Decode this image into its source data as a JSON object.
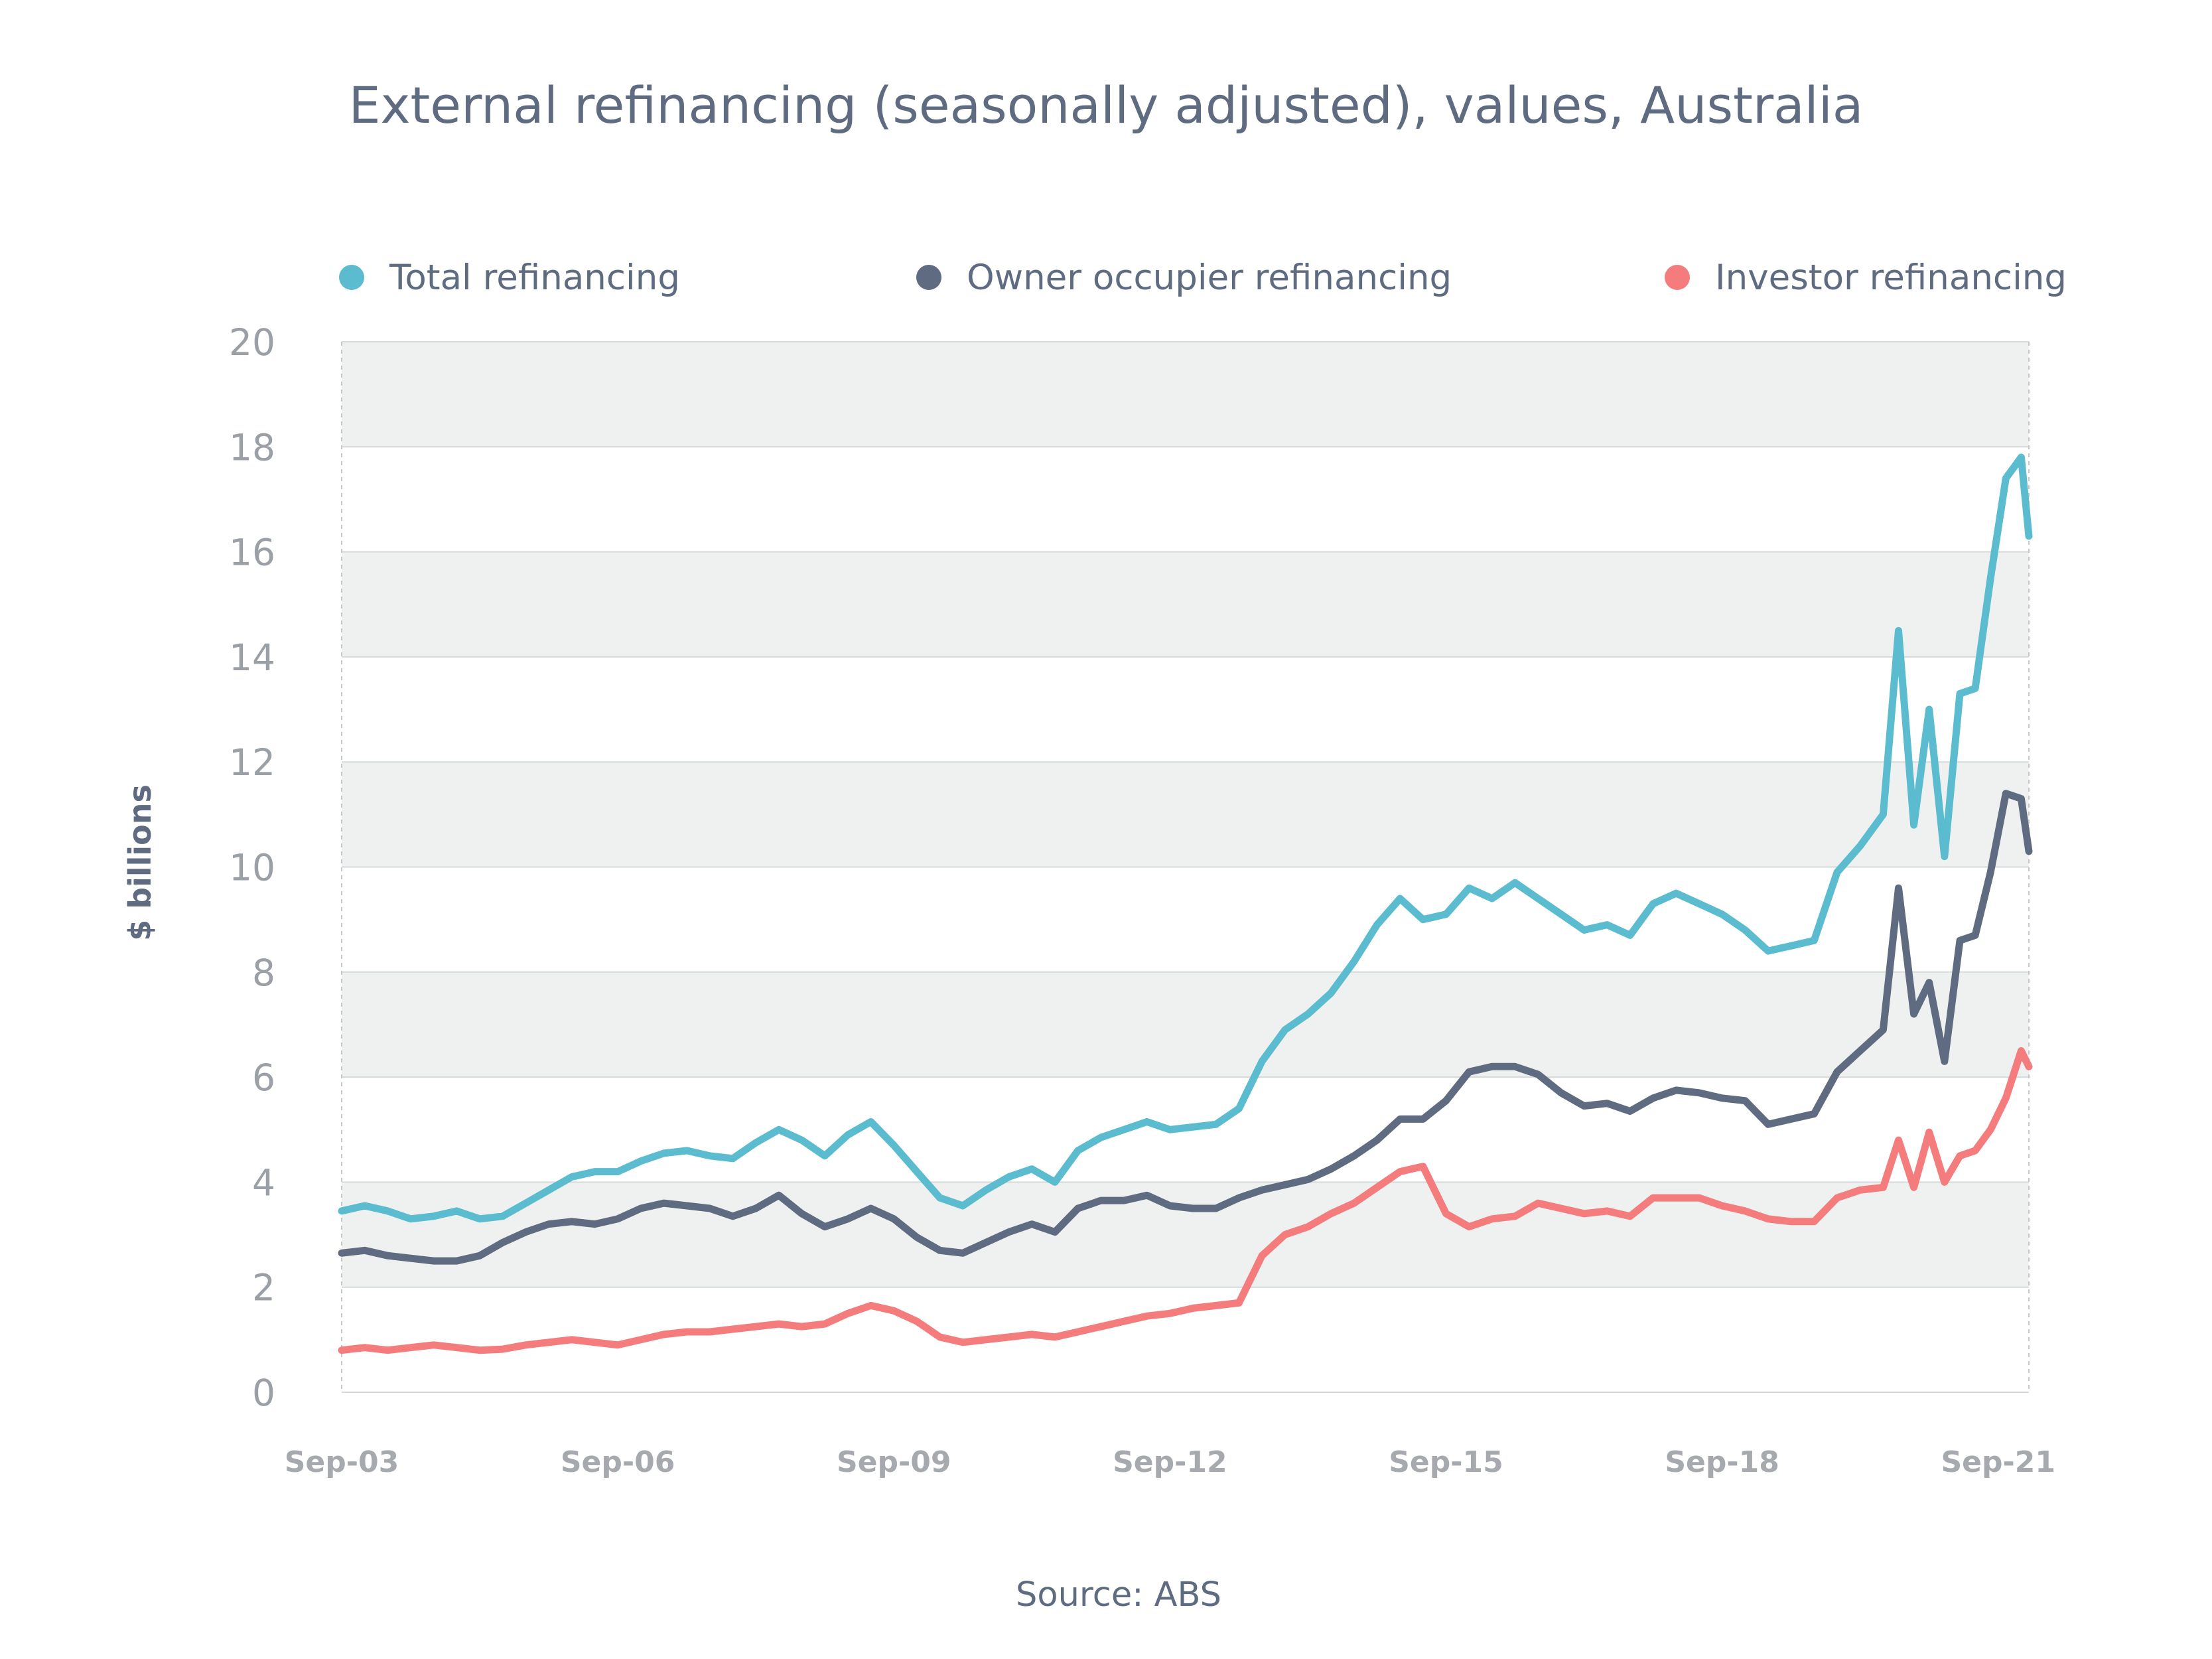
{
  "chart_data": {
    "type": "line",
    "title": "External refinancing (seasonally adjusted), values, Australia",
    "ylabel": "$ billions",
    "xlabel": "",
    "source": "Source: ABS",
    "ylim": [
      0,
      20
    ],
    "yticks": [
      "0",
      "2",
      "4",
      "6",
      "8",
      "10",
      "12",
      "14",
      "16",
      "18",
      "20"
    ],
    "x_range": [
      "Sep-03",
      "Jan-22"
    ],
    "x_ticks": [
      {
        "date": "2003-09",
        "label": "Sep-03"
      },
      {
        "date": "2006-09",
        "label": "Sep-06"
      },
      {
        "date": "2009-09",
        "label": "Sep-09"
      },
      {
        "date": "2012-09",
        "label": "Sep-12"
      },
      {
        "date": "2015-09",
        "label": "Sep-15"
      },
      {
        "date": "2018-09",
        "label": "Sep-18"
      },
      {
        "date": "2021-09",
        "label": "Sep-21"
      }
    ],
    "grid": true,
    "alternating_bands": true,
    "legend_position": "top",
    "series": [
      {
        "name": "Total refinancing",
        "color": "#5bbccf",
        "points": [
          [
            "2003-09",
            3.45
          ],
          [
            "2003-12",
            3.55
          ],
          [
            "2004-03",
            3.45
          ],
          [
            "2004-06",
            3.3
          ],
          [
            "2004-09",
            3.35
          ],
          [
            "2004-12",
            3.45
          ],
          [
            "2005-03",
            3.3
          ],
          [
            "2005-06",
            3.35
          ],
          [
            "2005-09",
            3.6
          ],
          [
            "2005-12",
            3.85
          ],
          [
            "2006-03",
            4.1
          ],
          [
            "2006-06",
            4.2
          ],
          [
            "2006-09",
            4.2
          ],
          [
            "2006-12",
            4.4
          ],
          [
            "2007-03",
            4.55
          ],
          [
            "2007-06",
            4.6
          ],
          [
            "2007-09",
            4.5
          ],
          [
            "2007-12",
            4.45
          ],
          [
            "2008-03",
            4.75
          ],
          [
            "2008-06",
            5.0
          ],
          [
            "2008-09",
            4.8
          ],
          [
            "2008-12",
            4.5
          ],
          [
            "2009-03",
            4.9
          ],
          [
            "2009-06",
            5.15
          ],
          [
            "2009-09",
            4.7
          ],
          [
            "2009-12",
            4.2
          ],
          [
            "2010-03",
            3.7
          ],
          [
            "2010-06",
            3.55
          ],
          [
            "2010-09",
            3.85
          ],
          [
            "2010-12",
            4.1
          ],
          [
            "2011-03",
            4.25
          ],
          [
            "2011-06",
            4.0
          ],
          [
            "2011-09",
            4.6
          ],
          [
            "2011-12",
            4.85
          ],
          [
            "2012-03",
            5.0
          ],
          [
            "2012-06",
            5.15
          ],
          [
            "2012-09",
            5.0
          ],
          [
            "2012-12",
            5.05
          ],
          [
            "2013-03",
            5.1
          ],
          [
            "2013-06",
            5.4
          ],
          [
            "2013-09",
            6.3
          ],
          [
            "2013-12",
            6.9
          ],
          [
            "2014-03",
            7.2
          ],
          [
            "2014-06",
            7.6
          ],
          [
            "2014-09",
            8.2
          ],
          [
            "2014-12",
            8.9
          ],
          [
            "2015-03",
            9.4
          ],
          [
            "2015-06",
            9.0
          ],
          [
            "2015-09",
            9.1
          ],
          [
            "2015-12",
            9.6
          ],
          [
            "2016-03",
            9.4
          ],
          [
            "2016-06",
            9.7
          ],
          [
            "2016-09",
            9.4
          ],
          [
            "2016-12",
            9.1
          ],
          [
            "2017-03",
            8.8
          ],
          [
            "2017-06",
            8.9
          ],
          [
            "2017-09",
            8.7
          ],
          [
            "2017-12",
            9.3
          ],
          [
            "2018-03",
            9.5
          ],
          [
            "2018-06",
            9.3
          ],
          [
            "2018-09",
            9.1
          ],
          [
            "2018-12",
            8.8
          ],
          [
            "2019-03",
            8.4
          ],
          [
            "2019-06",
            8.5
          ],
          [
            "2019-09",
            8.6
          ],
          [
            "2019-12",
            9.9
          ],
          [
            "2020-03",
            10.4
          ],
          [
            "2020-06",
            11.0
          ],
          [
            "2020-08",
            14.5
          ],
          [
            "2020-10",
            10.8
          ],
          [
            "2020-12",
            13.0
          ],
          [
            "2021-02",
            10.2
          ],
          [
            "2021-04",
            13.3
          ],
          [
            "2021-06",
            13.4
          ],
          [
            "2021-08",
            15.5
          ],
          [
            "2021-10",
            17.4
          ],
          [
            "2021-12",
            17.8
          ],
          [
            "2022-01",
            16.3
          ]
        ]
      },
      {
        "name": "Owner occupier refinancing",
        "color": "#5e6b80",
        "points": [
          [
            "2003-09",
            2.65
          ],
          [
            "2003-12",
            2.7
          ],
          [
            "2004-03",
            2.6
          ],
          [
            "2004-06",
            2.55
          ],
          [
            "2004-09",
            2.5
          ],
          [
            "2004-12",
            2.5
          ],
          [
            "2005-03",
            2.6
          ],
          [
            "2005-06",
            2.85
          ],
          [
            "2005-09",
            3.05
          ],
          [
            "2005-12",
            3.2
          ],
          [
            "2006-03",
            3.25
          ],
          [
            "2006-06",
            3.2
          ],
          [
            "2006-09",
            3.3
          ],
          [
            "2006-12",
            3.5
          ],
          [
            "2007-03",
            3.6
          ],
          [
            "2007-06",
            3.55
          ],
          [
            "2007-09",
            3.5
          ],
          [
            "2007-12",
            3.35
          ],
          [
            "2008-03",
            3.5
          ],
          [
            "2008-06",
            3.75
          ],
          [
            "2008-09",
            3.4
          ],
          [
            "2008-12",
            3.15
          ],
          [
            "2009-03",
            3.3
          ],
          [
            "2009-06",
            3.5
          ],
          [
            "2009-09",
            3.3
          ],
          [
            "2009-12",
            2.95
          ],
          [
            "2010-03",
            2.7
          ],
          [
            "2010-06",
            2.65
          ],
          [
            "2010-09",
            2.85
          ],
          [
            "2010-12",
            3.05
          ],
          [
            "2011-03",
            3.2
          ],
          [
            "2011-06",
            3.05
          ],
          [
            "2011-09",
            3.5
          ],
          [
            "2011-12",
            3.65
          ],
          [
            "2012-03",
            3.65
          ],
          [
            "2012-06",
            3.75
          ],
          [
            "2012-09",
            3.55
          ],
          [
            "2012-12",
            3.5
          ],
          [
            "2013-03",
            3.5
          ],
          [
            "2013-06",
            3.7
          ],
          [
            "2013-09",
            3.85
          ],
          [
            "2013-12",
            3.95
          ],
          [
            "2014-03",
            4.05
          ],
          [
            "2014-06",
            4.25
          ],
          [
            "2014-09",
            4.5
          ],
          [
            "2014-12",
            4.8
          ],
          [
            "2015-03",
            5.2
          ],
          [
            "2015-06",
            5.2
          ],
          [
            "2015-09",
            5.55
          ],
          [
            "2015-12",
            6.1
          ],
          [
            "2016-03",
            6.2
          ],
          [
            "2016-06",
            6.2
          ],
          [
            "2016-09",
            6.05
          ],
          [
            "2016-12",
            5.7
          ],
          [
            "2017-03",
            5.45
          ],
          [
            "2017-06",
            5.5
          ],
          [
            "2017-09",
            5.35
          ],
          [
            "2017-12",
            5.6
          ],
          [
            "2018-03",
            5.75
          ],
          [
            "2018-06",
            5.7
          ],
          [
            "2018-09",
            5.6
          ],
          [
            "2018-12",
            5.55
          ],
          [
            "2019-03",
            5.1
          ],
          [
            "2019-06",
            5.2
          ],
          [
            "2019-09",
            5.3
          ],
          [
            "2019-12",
            6.1
          ],
          [
            "2020-03",
            6.5
          ],
          [
            "2020-06",
            6.9
          ],
          [
            "2020-08",
            9.6
          ],
          [
            "2020-10",
            7.2
          ],
          [
            "2020-12",
            7.8
          ],
          [
            "2021-02",
            6.3
          ],
          [
            "2021-04",
            8.6
          ],
          [
            "2021-06",
            8.7
          ],
          [
            "2021-08",
            9.9
          ],
          [
            "2021-10",
            11.4
          ],
          [
            "2021-12",
            11.3
          ],
          [
            "2022-01",
            10.3
          ]
        ]
      },
      {
        "name": "Investor refinancing",
        "color": "#f47c7c",
        "points": [
          [
            "2003-09",
            0.8
          ],
          [
            "2003-12",
            0.85
          ],
          [
            "2004-03",
            0.8
          ],
          [
            "2004-06",
            0.85
          ],
          [
            "2004-09",
            0.9
          ],
          [
            "2004-12",
            0.85
          ],
          [
            "2005-03",
            0.8
          ],
          [
            "2005-06",
            0.82
          ],
          [
            "2005-09",
            0.9
          ],
          [
            "2005-12",
            0.95
          ],
          [
            "2006-03",
            1.0
          ],
          [
            "2006-06",
            0.95
          ],
          [
            "2006-09",
            0.9
          ],
          [
            "2006-12",
            1.0
          ],
          [
            "2007-03",
            1.1
          ],
          [
            "2007-06",
            1.15
          ],
          [
            "2007-09",
            1.15
          ],
          [
            "2007-12",
            1.2
          ],
          [
            "2008-03",
            1.25
          ],
          [
            "2008-06",
            1.3
          ],
          [
            "2008-09",
            1.25
          ],
          [
            "2008-12",
            1.3
          ],
          [
            "2009-03",
            1.5
          ],
          [
            "2009-06",
            1.65
          ],
          [
            "2009-09",
            1.55
          ],
          [
            "2009-12",
            1.35
          ],
          [
            "2010-03",
            1.05
          ],
          [
            "2010-06",
            0.95
          ],
          [
            "2010-09",
            1.0
          ],
          [
            "2010-12",
            1.05
          ],
          [
            "2011-03",
            1.1
          ],
          [
            "2011-06",
            1.05
          ],
          [
            "2011-09",
            1.15
          ],
          [
            "2011-12",
            1.25
          ],
          [
            "2012-03",
            1.35
          ],
          [
            "2012-06",
            1.45
          ],
          [
            "2012-09",
            1.5
          ],
          [
            "2012-12",
            1.6
          ],
          [
            "2013-03",
            1.65
          ],
          [
            "2013-06",
            1.7
          ],
          [
            "2013-09",
            2.6
          ],
          [
            "2013-12",
            3.0
          ],
          [
            "2014-03",
            3.15
          ],
          [
            "2014-06",
            3.4
          ],
          [
            "2014-09",
            3.6
          ],
          [
            "2014-12",
            3.9
          ],
          [
            "2015-03",
            4.2
          ],
          [
            "2015-06",
            4.3
          ],
          [
            "2015-09",
            3.4
          ],
          [
            "2015-12",
            3.15
          ],
          [
            "2016-03",
            3.3
          ],
          [
            "2016-06",
            3.35
          ],
          [
            "2016-09",
            3.6
          ],
          [
            "2016-12",
            3.5
          ],
          [
            "2017-03",
            3.4
          ],
          [
            "2017-06",
            3.45
          ],
          [
            "2017-09",
            3.35
          ],
          [
            "2017-12",
            3.7
          ],
          [
            "2018-03",
            3.7
          ],
          [
            "2018-06",
            3.7
          ],
          [
            "2018-09",
            3.55
          ],
          [
            "2018-12",
            3.45
          ],
          [
            "2019-03",
            3.3
          ],
          [
            "2019-06",
            3.25
          ],
          [
            "2019-09",
            3.25
          ],
          [
            "2019-12",
            3.7
          ],
          [
            "2020-03",
            3.85
          ],
          [
            "2020-06",
            3.9
          ],
          [
            "2020-08",
            4.8
          ],
          [
            "2020-10",
            3.9
          ],
          [
            "2020-12",
            4.95
          ],
          [
            "2021-02",
            4.0
          ],
          [
            "2021-04",
            4.5
          ],
          [
            "2021-06",
            4.6
          ],
          [
            "2021-08",
            5.0
          ],
          [
            "2021-10",
            5.6
          ],
          [
            "2021-12",
            6.5
          ],
          [
            "2022-01",
            6.2
          ]
        ]
      }
    ]
  }
}
